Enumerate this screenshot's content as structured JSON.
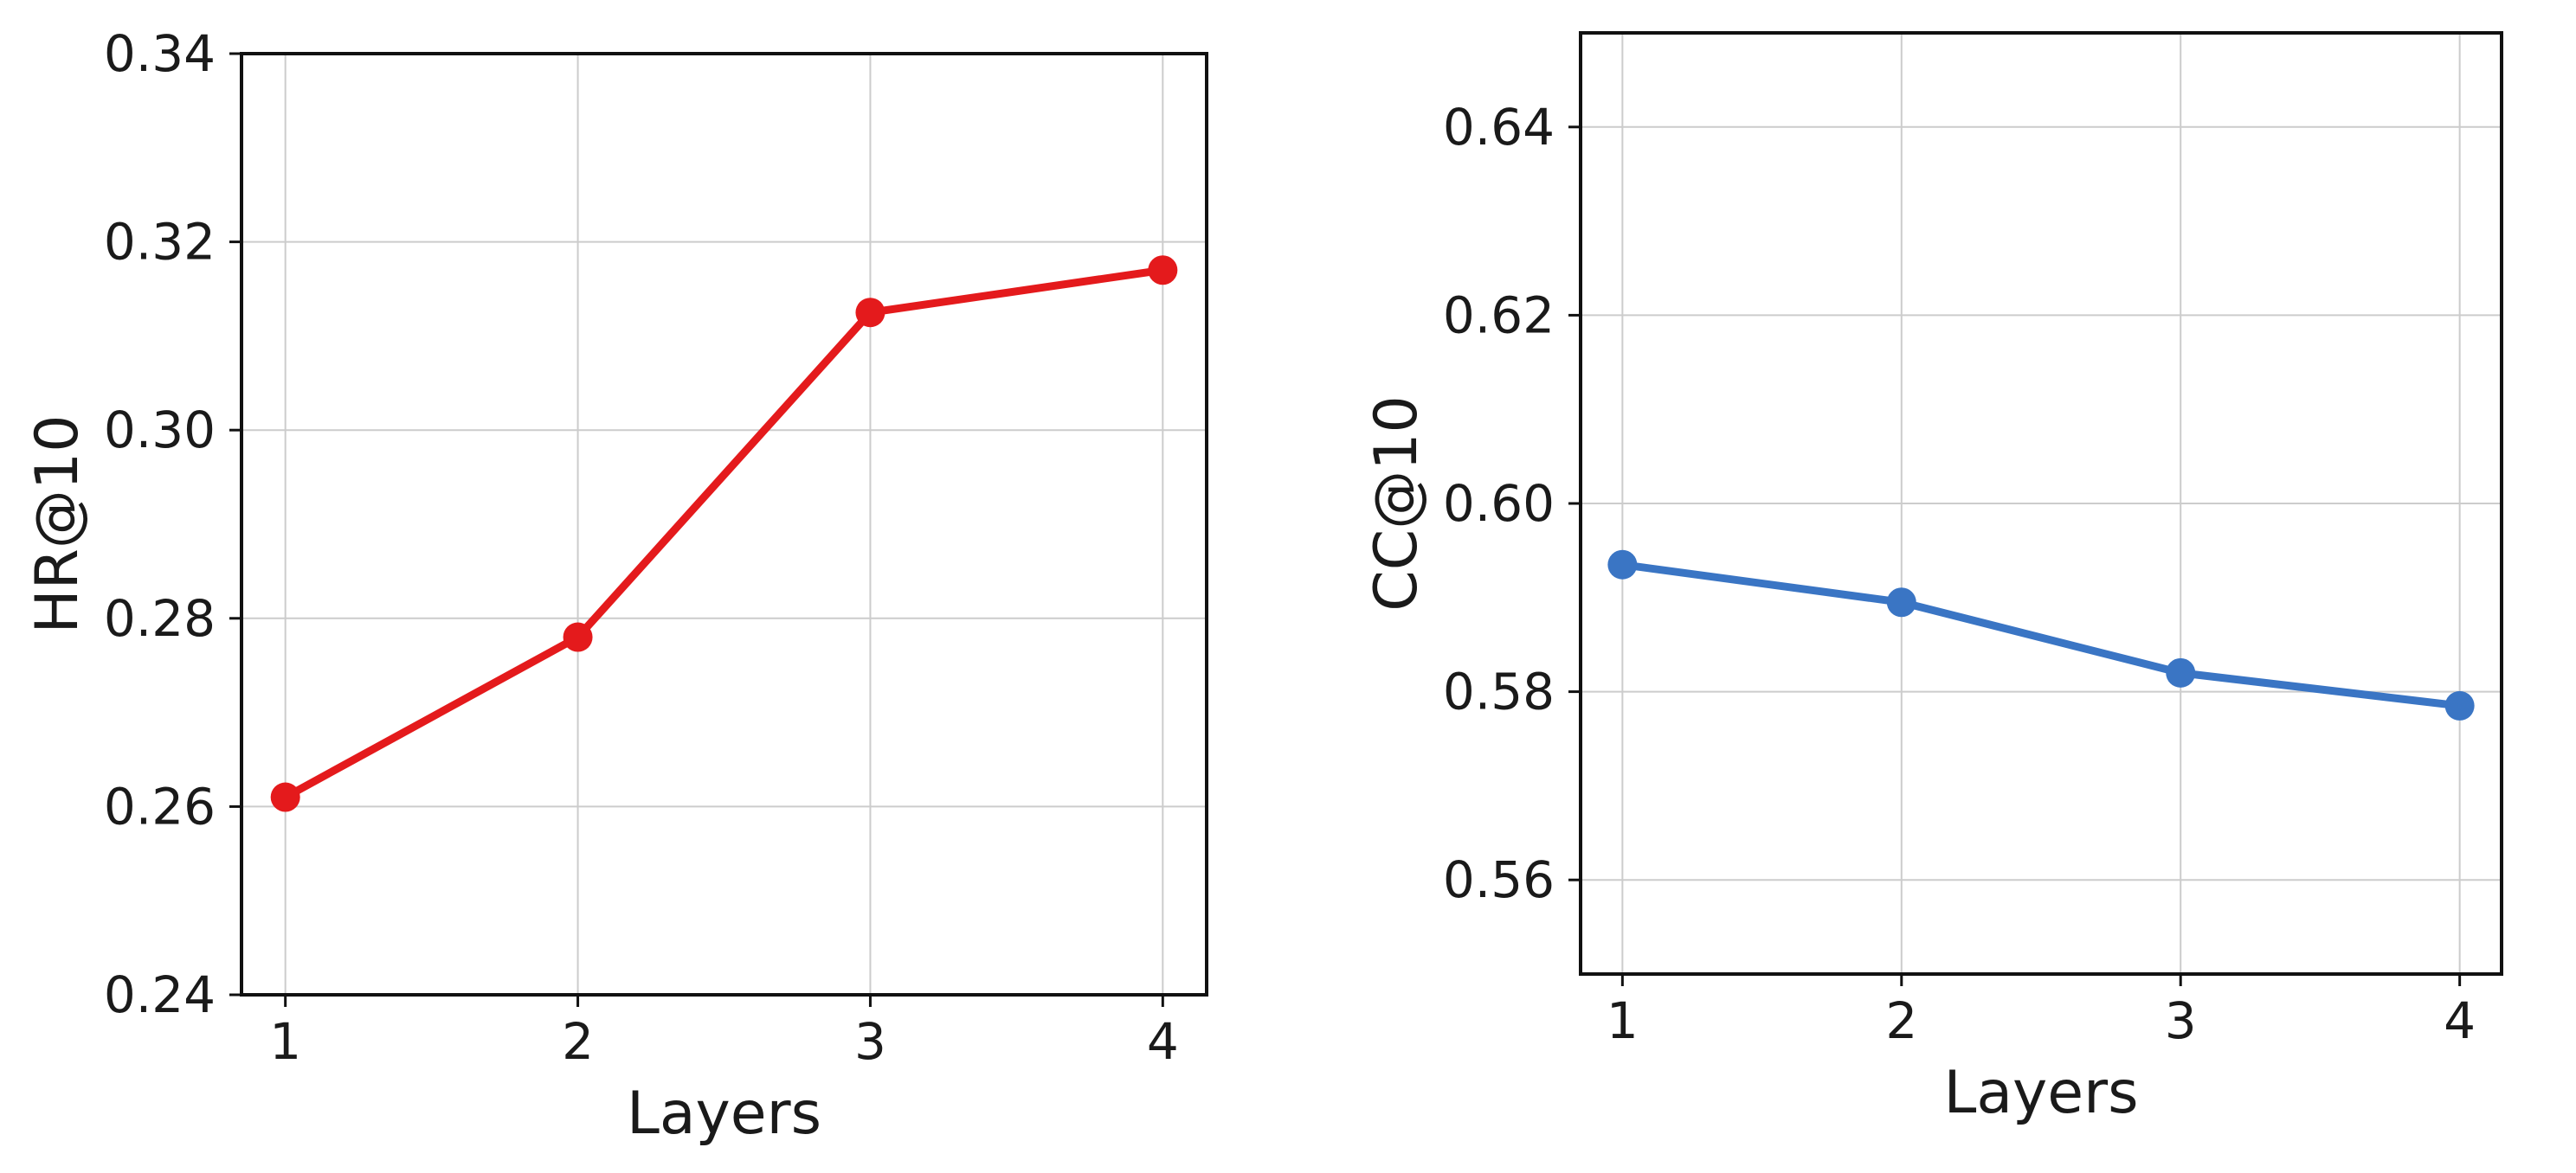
{
  "chart_data": [
    {
      "type": "line",
      "xlabel": "Layers",
      "ylabel": "HR@10",
      "x": [
        1,
        2,
        3,
        4
      ],
      "xticks": [
        "1",
        "2",
        "3",
        "4"
      ],
      "yticks": [
        "0.24",
        "0.26",
        "0.28",
        "0.30",
        "0.32",
        "0.34"
      ],
      "ylim": [
        0.24,
        0.34
      ],
      "xlim": [
        0.85,
        4.15
      ],
      "grid": true,
      "series": [
        {
          "values": [
            0.261,
            0.278,
            0.3125,
            0.317
          ],
          "color": "#e41a1c"
        }
      ]
    },
    {
      "type": "line",
      "xlabel": "Layers",
      "ylabel": "CC@10",
      "x": [
        1,
        2,
        3,
        4
      ],
      "xticks": [
        "1",
        "2",
        "3",
        "4"
      ],
      "yticks": [
        "0.56",
        "0.58",
        "0.60",
        "0.62",
        "0.64"
      ],
      "ylim": [
        0.55,
        0.65
      ],
      "xlim": [
        0.85,
        4.15
      ],
      "grid": true,
      "series": [
        {
          "values": [
            0.5935,
            0.5895,
            0.582,
            0.5785
          ],
          "color": "#3a75c4"
        }
      ]
    }
  ]
}
